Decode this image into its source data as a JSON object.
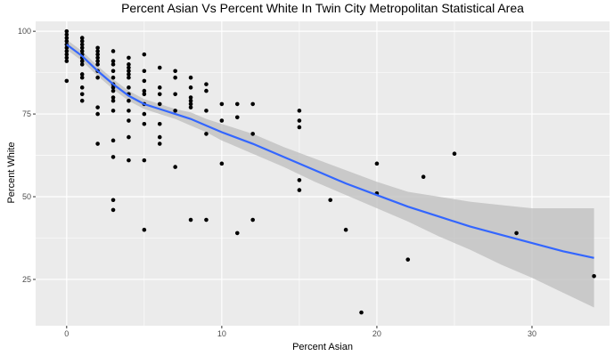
{
  "chart_data": {
    "type": "scatter",
    "title": "Percent Asian Vs Percent White In Twin City Metropolitan Statistical Area",
    "xlabel": "Percent Asian",
    "ylabel": "Percent White",
    "xlim": [
      -2,
      35
    ],
    "ylim": [
      11,
      103
    ],
    "x_ticks": [
      0,
      10,
      20,
      30
    ],
    "y_ticks": [
      25,
      50,
      75,
      100
    ],
    "x_minor": [
      5,
      15,
      25
    ],
    "y_minor": [
      37.5,
      62.5,
      87.5
    ],
    "grid": true,
    "background": "#EBEBEB",
    "grid_color": "#FFFFFF",
    "point_color": "#000000",
    "smooth_color": "#3366FF",
    "ribbon_color": "#BEBEBE",
    "points": [
      {
        "x": 0,
        "y": 100
      },
      {
        "x": 0,
        "y": 99
      },
      {
        "x": 0,
        "y": 98
      },
      {
        "x": 0,
        "y": 97
      },
      {
        "x": 0,
        "y": 96
      },
      {
        "x": 0,
        "y": 95
      },
      {
        "x": 0,
        "y": 94
      },
      {
        "x": 0,
        "y": 93
      },
      {
        "x": 0,
        "y": 92
      },
      {
        "x": 0,
        "y": 91
      },
      {
        "x": 0,
        "y": 85
      },
      {
        "x": 1,
        "y": 98
      },
      {
        "x": 1,
        "y": 97
      },
      {
        "x": 1,
        "y": 96
      },
      {
        "x": 1,
        "y": 95
      },
      {
        "x": 1,
        "y": 94
      },
      {
        "x": 1,
        "y": 93
      },
      {
        "x": 1,
        "y": 92
      },
      {
        "x": 1,
        "y": 91
      },
      {
        "x": 1,
        "y": 90
      },
      {
        "x": 1,
        "y": 87
      },
      {
        "x": 1,
        "y": 86
      },
      {
        "x": 1,
        "y": 83
      },
      {
        "x": 1,
        "y": 81
      },
      {
        "x": 1,
        "y": 79
      },
      {
        "x": 2,
        "y": 95
      },
      {
        "x": 2,
        "y": 94
      },
      {
        "x": 2,
        "y": 93
      },
      {
        "x": 2,
        "y": 92
      },
      {
        "x": 2,
        "y": 91
      },
      {
        "x": 2,
        "y": 90
      },
      {
        "x": 2,
        "y": 88
      },
      {
        "x": 2,
        "y": 86
      },
      {
        "x": 2,
        "y": 77
      },
      {
        "x": 2,
        "y": 75
      },
      {
        "x": 2,
        "y": 66
      },
      {
        "x": 3,
        "y": 94
      },
      {
        "x": 3,
        "y": 91
      },
      {
        "x": 3,
        "y": 90
      },
      {
        "x": 3,
        "y": 88
      },
      {
        "x": 3,
        "y": 86
      },
      {
        "x": 3,
        "y": 84
      },
      {
        "x": 3,
        "y": 83
      },
      {
        "x": 3,
        "y": 82
      },
      {
        "x": 3,
        "y": 80
      },
      {
        "x": 3,
        "y": 79
      },
      {
        "x": 3,
        "y": 76
      },
      {
        "x": 3,
        "y": 67
      },
      {
        "x": 3,
        "y": 62
      },
      {
        "x": 3,
        "y": 49
      },
      {
        "x": 3,
        "y": 46
      },
      {
        "x": 4,
        "y": 92
      },
      {
        "x": 4,
        "y": 90
      },
      {
        "x": 4,
        "y": 89
      },
      {
        "x": 4,
        "y": 88
      },
      {
        "x": 4,
        "y": 87
      },
      {
        "x": 4,
        "y": 86
      },
      {
        "x": 4,
        "y": 83
      },
      {
        "x": 4,
        "y": 81
      },
      {
        "x": 4,
        "y": 79
      },
      {
        "x": 4,
        "y": 76
      },
      {
        "x": 4,
        "y": 73
      },
      {
        "x": 4,
        "y": 68
      },
      {
        "x": 4,
        "y": 61
      },
      {
        "x": 5,
        "y": 93
      },
      {
        "x": 5,
        "y": 88
      },
      {
        "x": 5,
        "y": 85
      },
      {
        "x": 5,
        "y": 82
      },
      {
        "x": 5,
        "y": 81
      },
      {
        "x": 5,
        "y": 78
      },
      {
        "x": 5,
        "y": 75
      },
      {
        "x": 5,
        "y": 72
      },
      {
        "x": 5,
        "y": 61
      },
      {
        "x": 5,
        "y": 40
      },
      {
        "x": 6,
        "y": 89
      },
      {
        "x": 6,
        "y": 83
      },
      {
        "x": 6,
        "y": 81
      },
      {
        "x": 6,
        "y": 78
      },
      {
        "x": 6,
        "y": 72
      },
      {
        "x": 6,
        "y": 68
      },
      {
        "x": 6,
        "y": 66
      },
      {
        "x": 7,
        "y": 88
      },
      {
        "x": 7,
        "y": 86
      },
      {
        "x": 7,
        "y": 81
      },
      {
        "x": 7,
        "y": 76
      },
      {
        "x": 7,
        "y": 59
      },
      {
        "x": 8,
        "y": 86
      },
      {
        "x": 8,
        "y": 83
      },
      {
        "x": 8,
        "y": 80
      },
      {
        "x": 8,
        "y": 79
      },
      {
        "x": 8,
        "y": 78
      },
      {
        "x": 8,
        "y": 77
      },
      {
        "x": 8,
        "y": 43
      },
      {
        "x": 9,
        "y": 84
      },
      {
        "x": 9,
        "y": 82
      },
      {
        "x": 9,
        "y": 76
      },
      {
        "x": 9,
        "y": 69
      },
      {
        "x": 9,
        "y": 43
      },
      {
        "x": 10,
        "y": 78
      },
      {
        "x": 10,
        "y": 73
      },
      {
        "x": 10,
        "y": 60
      },
      {
        "x": 11,
        "y": 78
      },
      {
        "x": 11,
        "y": 74
      },
      {
        "x": 11,
        "y": 39
      },
      {
        "x": 12,
        "y": 78
      },
      {
        "x": 12,
        "y": 69
      },
      {
        "x": 12,
        "y": 43
      },
      {
        "x": 15,
        "y": 76
      },
      {
        "x": 15,
        "y": 73
      },
      {
        "x": 15,
        "y": 71
      },
      {
        "x": 15,
        "y": 55
      },
      {
        "x": 15,
        "y": 52
      },
      {
        "x": 17,
        "y": 49
      },
      {
        "x": 18,
        "y": 40
      },
      {
        "x": 19,
        "y": 15
      },
      {
        "x": 20,
        "y": 60
      },
      {
        "x": 20,
        "y": 51
      },
      {
        "x": 22,
        "y": 31
      },
      {
        "x": 23,
        "y": 56
      },
      {
        "x": 25,
        "y": 63
      },
      {
        "x": 29,
        "y": 39
      },
      {
        "x": 34,
        "y": 26
      }
    ],
    "smooth": {
      "x": [
        0,
        1,
        2,
        3,
        4,
        5,
        6,
        7,
        8,
        9,
        10,
        12,
        14,
        16,
        18,
        20,
        22,
        24,
        26,
        28,
        30,
        32,
        34
      ],
      "y": [
        96,
        92.5,
        88,
        84,
        80.5,
        78,
        76.5,
        75,
        73.5,
        71.5,
        69.5,
        66,
        62,
        58,
        54,
        50.5,
        47,
        44,
        41,
        38.5,
        36,
        33.5,
        31.5
      ],
      "lower": [
        94.5,
        91,
        86.5,
        82.5,
        79,
        76.5,
        75,
        73.5,
        71.5,
        69.5,
        67,
        63,
        59,
        54.5,
        50.5,
        46.5,
        42.5,
        38,
        34,
        29.5,
        25.5,
        21,
        16.5
      ],
      "upper": [
        97.5,
        94,
        89.5,
        85.5,
        82,
        79.5,
        78,
        76.5,
        75.5,
        73.5,
        72,
        69,
        65,
        61.5,
        58,
        54.5,
        51.5,
        50,
        48.5,
        47.5,
        46.5,
        46.5,
        46.5
      ]
    }
  }
}
